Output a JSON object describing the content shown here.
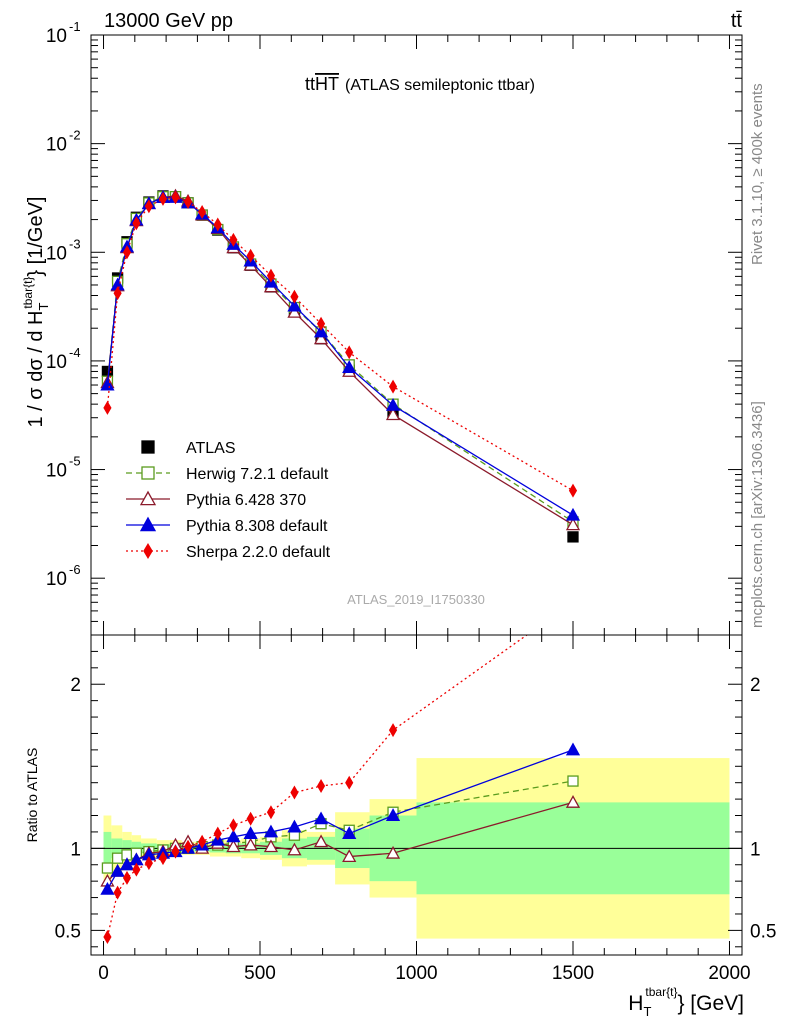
{
  "header": {
    "beam": "13000 GeV pp",
    "process": "tt̄"
  },
  "side_labels": {
    "rivet": "Rivet 3.1.10, ≥ 400k events",
    "mcplots": "mcplots.cern.ch [arXiv:1306.3436]"
  },
  "chart_data": [
    {
      "type": "line",
      "panel": "main",
      "title_prefix": "tt",
      "title_overline": "HT",
      "title_suffix": "(ATLAS semileptonic ttbar)",
      "watermark": "ATLAS_2019_I1750330",
      "ylabel_main": "1 / σ dσ / d H",
      "ylabel_sub": "T",
      "ylabel_sup": "tbar{t}",
      "ylabel_tail": "} [1/GeV]",
      "yscale": "log",
      "ylim": [
        3e-07,
        0.1
      ],
      "xlim": [
        -40,
        2040
      ],
      "y_tick_labels": [
        "10",
        "10",
        "10",
        "10",
        "10",
        "10"
      ],
      "y_tick_exponents": [
        "-6",
        "-5",
        "-4",
        "-3",
        "-2",
        "-1"
      ],
      "y_tick_values": [
        1e-06,
        1e-05,
        0.0001,
        0.001,
        0.01,
        0.1
      ],
      "legend_position": "bottom-left",
      "x": [
        12.5,
        45,
        75,
        105,
        145,
        190,
        230,
        270,
        315,
        365,
        415,
        470,
        535,
        610,
        695,
        785,
        925,
        1500
      ],
      "series": [
        {
          "name": "ATLAS",
          "color": "#000000",
          "marker": "square-filled",
          "line": "none",
          "values": [
            8e-05,
            0.00058,
            0.00125,
            0.0021,
            0.0029,
            0.0033,
            0.00325,
            0.00285,
            0.0022,
            0.0016,
            0.0011,
            0.00076,
            0.00048,
            0.00029,
            0.00016,
            8.2e-05,
            3.3e-05,
            2.4e-06
          ]
        },
        {
          "name": "Herwig 7.2.1 default",
          "color": "#5a9c1e",
          "marker": "square-open",
          "line": "dashed",
          "values": [
            6.5e-05,
            0.00054,
            0.0012,
            0.00205,
            0.00285,
            0.00325,
            0.00325,
            0.00285,
            0.0022,
            0.00162,
            0.00112,
            0.00078,
            0.00051,
            0.00031,
            0.000185,
            9.2e-05,
            4e-05,
            3.3e-06
          ]
        },
        {
          "name": "Pythia 6.428 370",
          "color": "#8b1a2b",
          "marker": "triangle-open",
          "line": "solid",
          "values": [
            6.3e-05,
            0.00049,
            0.0011,
            0.00195,
            0.0028,
            0.0032,
            0.0033,
            0.00295,
            0.0022,
            0.00165,
            0.0011,
            0.00076,
            0.00048,
            0.00028,
            0.00016,
            8e-05,
            3.2e-05,
            3.1e-06
          ]
        },
        {
          "name": "Pythia 8.308 default",
          "color": "#0000dd",
          "marker": "triangle-filled",
          "line": "solid",
          "values": [
            6e-05,
            0.0005,
            0.00112,
            0.00198,
            0.0028,
            0.0032,
            0.0032,
            0.00285,
            0.00225,
            0.00168,
            0.00118,
            0.00083,
            0.00053,
            0.00032,
            0.000185,
            8.7e-05,
            3.9e-05,
            3.8e-06
          ]
        },
        {
          "name": "Sherpa 2.2.0 default",
          "color": "#ee0000",
          "marker": "diamond-filled",
          "line": "dotted",
          "values": [
            3.7e-05,
            0.00042,
            0.001,
            0.00185,
            0.00265,
            0.0031,
            0.0032,
            0.0029,
            0.00235,
            0.0018,
            0.0013,
            0.00093,
            0.00061,
            0.00039,
            0.00022,
            0.00012,
            5.8e-05,
            6.4e-06
          ]
        }
      ]
    },
    {
      "type": "line",
      "panel": "ratio",
      "ylabel": "Ratio to ATLAS",
      "xlabel_main": "H",
      "xlabel_sub": "T",
      "xlabel_sup": "tbar{t}",
      "xlabel_tail": "} [GeV]",
      "ylim": [
        0.35,
        2.3
      ],
      "xlim": [
        -40,
        2040
      ],
      "x_ticks": [
        0,
        500,
        1000,
        1500,
        2000
      ],
      "x_tick_labels": [
        "0",
        "500",
        "1000",
        "1500",
        "2000"
      ],
      "y_ticks": [
        0.5,
        1,
        2
      ],
      "y_tick_labels": [
        "0.5",
        "1",
        "2"
      ],
      "reference_line": 1.0,
      "x": [
        12.5,
        45,
        75,
        105,
        145,
        190,
        230,
        270,
        315,
        365,
        415,
        470,
        535,
        610,
        695,
        785,
        925,
        1500
      ],
      "bins": [
        {
          "lo": 0,
          "hi": 25,
          "stat": 0.1,
          "tot": 0.2
        },
        {
          "lo": 25,
          "hi": 60,
          "stat": 0.06,
          "tot": 0.14
        },
        {
          "lo": 60,
          "hi": 90,
          "stat": 0.05,
          "tot": 0.1
        },
        {
          "lo": 90,
          "hi": 120,
          "stat": 0.04,
          "tot": 0.08
        },
        {
          "lo": 120,
          "hi": 170,
          "stat": 0.03,
          "tot": 0.06
        },
        {
          "lo": 170,
          "hi": 210,
          "stat": 0.025,
          "tot": 0.05
        },
        {
          "lo": 210,
          "hi": 250,
          "stat": 0.025,
          "tot": 0.05
        },
        {
          "lo": 250,
          "hi": 290,
          "stat": 0.025,
          "tot": 0.04
        },
        {
          "lo": 290,
          "hi": 340,
          "stat": 0.02,
          "tot": 0.04
        },
        {
          "lo": 340,
          "hi": 390,
          "stat": 0.025,
          "tot": 0.05
        },
        {
          "lo": 390,
          "hi": 440,
          "stat": 0.03,
          "tot": 0.05
        },
        {
          "lo": 440,
          "hi": 500,
          "stat": 0.03,
          "tot": 0.06
        },
        {
          "lo": 500,
          "hi": 570,
          "stat": 0.04,
          "tot": 0.07
        },
        {
          "lo": 570,
          "hi": 650,
          "stat": 0.06,
          "tot": 0.11
        },
        {
          "lo": 650,
          "hi": 740,
          "stat": 0.07,
          "tot": 0.1
        },
        {
          "lo": 740,
          "hi": 850,
          "stat": 0.12,
          "tot": 0.22
        },
        {
          "lo": 850,
          "hi": 1000,
          "stat": 0.2,
          "tot": 0.3
        },
        {
          "lo": 1000,
          "hi": 2000,
          "stat": 0.28,
          "tot": 0.55
        }
      ],
      "series": [
        {
          "name": "Herwig 7.2.1 default",
          "color": "#5a9c1e",
          "marker": "square-open",
          "line": "dashed",
          "values": [
            0.88,
            0.94,
            0.96,
            0.97,
            0.98,
            0.99,
            1.0,
            1.0,
            1.01,
            1.02,
            1.03,
            1.04,
            1.07,
            1.08,
            1.15,
            1.11,
            1.22,
            1.41
          ]
        },
        {
          "name": "Pythia 6.428 370",
          "color": "#8b1a2b",
          "marker": "triangle-open",
          "line": "solid",
          "values": [
            0.8,
            0.86,
            0.9,
            0.93,
            0.97,
            0.98,
            1.02,
            1.04,
            1.0,
            1.03,
            1.01,
            1.02,
            1.01,
            0.99,
            1.04,
            0.95,
            0.97,
            1.28
          ]
        },
        {
          "name": "Pythia 8.308 default",
          "color": "#0000dd",
          "marker": "triangle-filled",
          "line": "solid",
          "values": [
            0.75,
            0.86,
            0.9,
            0.93,
            0.96,
            0.97,
            0.98,
            1.0,
            1.02,
            1.05,
            1.07,
            1.09,
            1.1,
            1.13,
            1.18,
            1.09,
            1.2,
            1.6
          ]
        },
        {
          "name": "Sherpa 2.2.0 default",
          "color": "#ee0000",
          "marker": "diamond-filled",
          "line": "dotted",
          "values": [
            0.46,
            0.73,
            0.82,
            0.87,
            0.91,
            0.94,
            0.98,
            1.01,
            1.04,
            1.09,
            1.14,
            1.18,
            1.22,
            1.34,
            1.38,
            1.4,
            1.72,
            2.5
          ]
        }
      ]
    }
  ]
}
